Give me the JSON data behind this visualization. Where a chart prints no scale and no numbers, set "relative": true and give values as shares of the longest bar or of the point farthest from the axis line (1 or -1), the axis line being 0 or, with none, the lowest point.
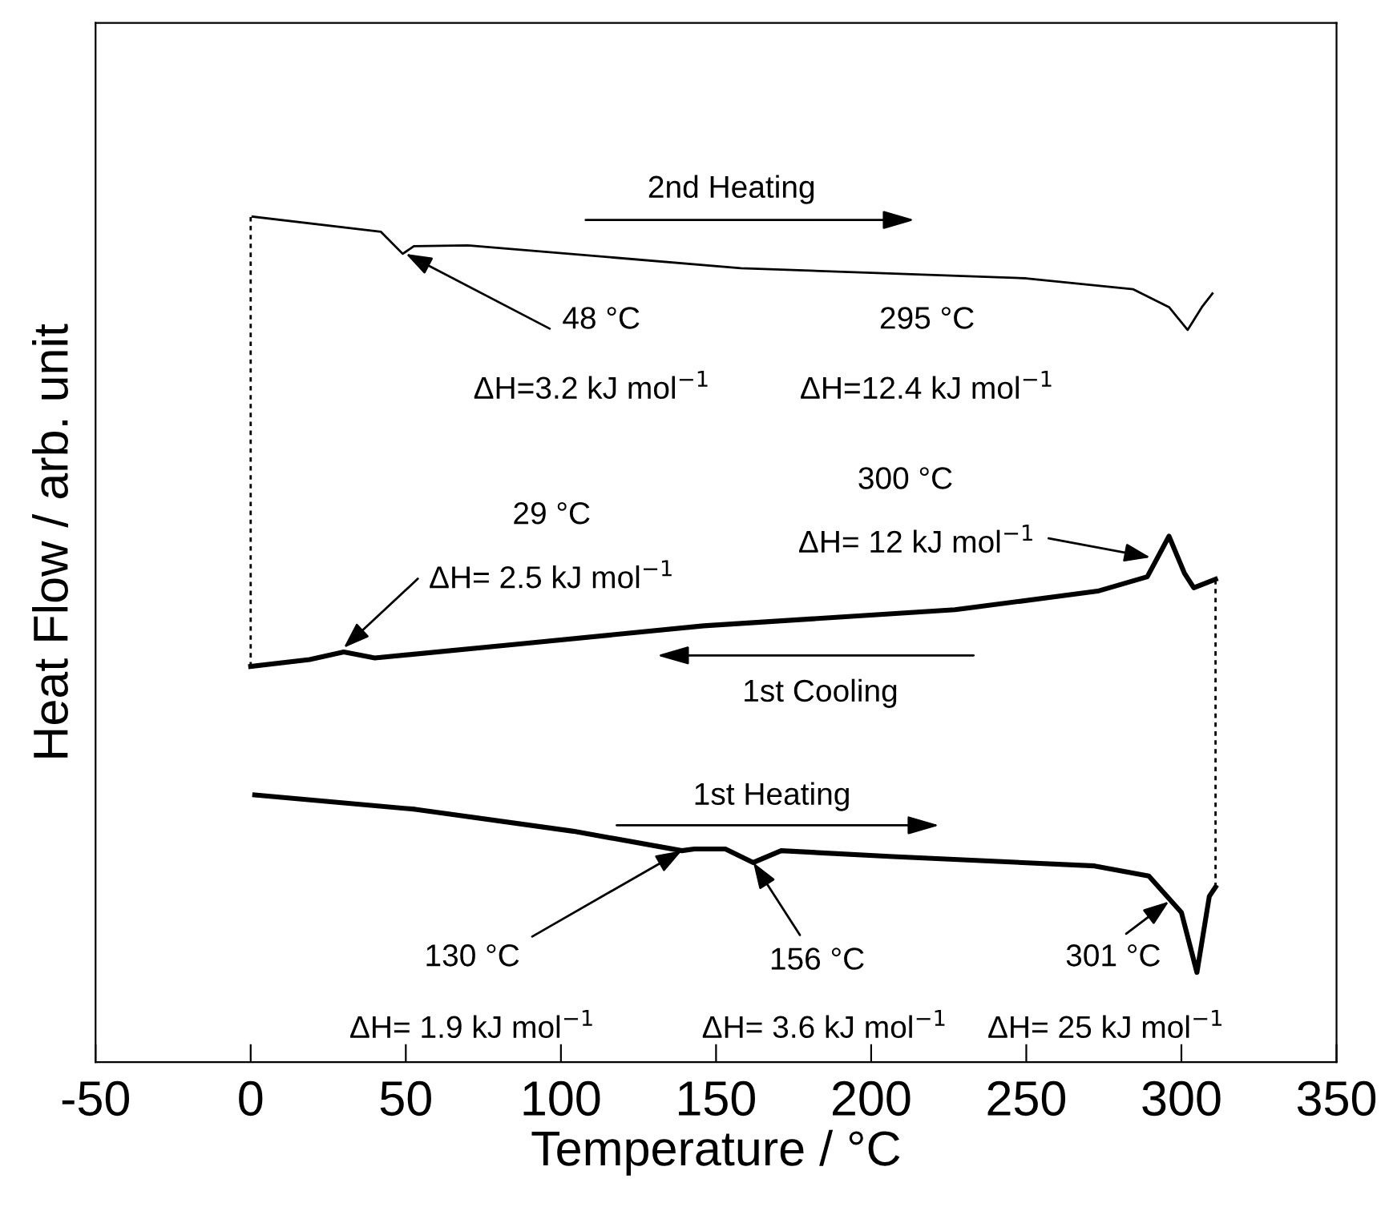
{
  "chart_data": {
    "type": "line",
    "relative": true,
    "xlabel": "Temperature / °C",
    "ylabel": "Heat Flow / arb. unit",
    "xlim": [
      -50,
      350
    ],
    "xticks": [
      -50,
      0,
      50,
      100,
      150,
      200,
      250,
      300,
      350
    ],
    "grid": false,
    "marker": "none",
    "series": [
      {
        "color": "#000000",
        "line_style": "solid",
        "x": [
          0.6,
          42,
          49,
          52.6,
          70,
          158,
          250,
          284.5,
          296,
          302,
          306.6,
          310
        ],
        "values": [
          1.0,
          0.982,
          0.956,
          0.965,
          0.966,
          0.939,
          0.927,
          0.914,
          0.893,
          0.866,
          0.893,
          0.909
        ]
      },
      {
        "color": "#000000",
        "line_style": "solid",
        "x": [
          0,
          19,
          30,
          40,
          88,
          146,
          227,
          273,
          289,
          296,
          301,
          304,
          311
        ],
        "values": [
          0.468,
          0.476,
          0.485,
          0.478,
          0.495,
          0.516,
          0.535,
          0.557,
          0.574,
          0.622,
          0.578,
          0.561,
          0.571
        ]
      },
      {
        "color": "#000000",
        "line_style": "solid",
        "x": [
          1.3,
          53,
          104,
          139,
          143,
          153,
          162,
          171,
          207,
          272,
          289.5,
          300,
          305,
          309,
          311
        ],
        "values": [
          0.316,
          0.299,
          0.273,
          0.25,
          0.252,
          0.252,
          0.236,
          0.25,
          0.243,
          0.232,
          0.22,
          0.177,
          0.106,
          0.196,
          0.207
        ]
      },
      {
        "color": "#000000",
        "line_style": "dashed",
        "x": [
          0,
          0
        ],
        "values": [
          0.468,
          1.0
        ]
      },
      {
        "color": "#000000",
        "line_style": "dashed",
        "x": [
          311,
          311
        ],
        "values": [
          0.207,
          0.571
        ]
      }
    ],
    "annotations": [
      "2nd Heating",
      {
        "text": "48 °C",
        "x": 50,
        "y": 0.956
      },
      "295 °C",
      "ΔH=3.2 kJ mol$^{−1}$",
      "ΔH=12.4 kJ mol$^{−1}$",
      "300 °C",
      {
        "text": "ΔH= 12 kJ mol$^{−1}$",
        "x": 290,
        "y": 0.597
      },
      "29 °C",
      {
        "text": "ΔH= 2.5 kJ mol$^{−1}$",
        "x": 30,
        "y": 0.49
      },
      "1st Cooling",
      "1st Heating",
      {
        "text": "130 °C",
        "x": 139,
        "y": 0.25
      },
      {
        "text": "156 °C",
        "x": 162,
        "y": 0.236
      },
      {
        "text": "301 °C",
        "x": 296,
        "y": 0.19
      },
      "ΔH= 1.9 kJ mol$^{−1}$",
      "ΔH= 3.6 kJ mol$^{−1}$",
      "ΔH= 25 kJ mol$^{−1}$"
    ]
  }
}
